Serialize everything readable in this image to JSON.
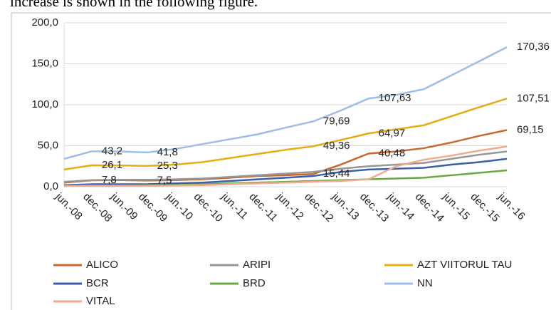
{
  "caption": "increase is shown in the following figure.",
  "chart_data": {
    "type": "line",
    "categories": [
      "jun.-08",
      "dec.-08",
      "jun.-09",
      "dec.-09",
      "jun.-10",
      "dec.-10",
      "jun.-11",
      "dec.-11",
      "jun.-12",
      "dec.-12",
      "jun.-13",
      "dec.-13",
      "jun.-14",
      "dec.-14",
      "jun.-15",
      "dec.-15",
      "jun.-16"
    ],
    "ylim": [
      0,
      200
    ],
    "yticks": [
      {
        "value": 0,
        "label": "0,0"
      },
      {
        "value": 50,
        "label": "50,0"
      },
      {
        "value": 100,
        "label": "100,0"
      },
      {
        "value": 150,
        "label": "150,0"
      },
      {
        "value": 200,
        "label": "200,0"
      }
    ],
    "grid": true,
    "legend": "bottom",
    "series": [
      {
        "name": "ALICO",
        "color": "#c8682c",
        "values": [
          5,
          7.8,
          8,
          7.5,
          8,
          9,
          11,
          13,
          14,
          15.44,
          27,
          40.48,
          43,
          47,
          54,
          62,
          69.15
        ],
        "value_labels": [
          null,
          "7,8",
          null,
          "7,5",
          null,
          null,
          null,
          null,
          null,
          "15,44",
          null,
          "40,48",
          null,
          null,
          null,
          null,
          "69,15"
        ]
      },
      {
        "name": "ARIPI",
        "color": "#969696",
        "values": [
          6,
          8,
          8.5,
          8.5,
          9,
          10,
          12,
          14,
          16,
          18,
          22,
          25,
          27,
          29,
          34,
          39,
          43
        ]
      },
      {
        "name": "AZT VIITORUL TAU",
        "color": "#e6ac10",
        "values": [
          21,
          26.1,
          26,
          25.3,
          27,
          30,
          35,
          40,
          45,
          49.36,
          57,
          64.97,
          70,
          75,
          86,
          97,
          107.51
        ],
        "value_labels": [
          null,
          "26,1",
          null,
          "25,3",
          null,
          null,
          null,
          null,
          null,
          "49,36",
          null,
          "64,97",
          null,
          null,
          null,
          null,
          "107,51"
        ]
      },
      {
        "name": "BCR",
        "color": "#3a5fa8",
        "values": [
          2,
          3,
          3,
          3,
          4,
          5,
          7,
          9,
          11,
          13,
          18,
          21,
          22,
          23,
          27,
          30,
          34
        ]
      },
      {
        "name": "BRD",
        "color": "#6aa744",
        "values": [
          1,
          1.5,
          1.5,
          2,
          2,
          3,
          4,
          5,
          6,
          7,
          8,
          9,
          10,
          11,
          14,
          17,
          20
        ]
      },
      {
        "name": "NN",
        "color": "#9dbde6",
        "values": [
          34,
          43.2,
          43,
          41.8,
          46,
          52,
          58,
          64,
          72,
          79.69,
          93,
          107.63,
          112,
          119,
          136,
          153,
          170.36
        ],
        "value_labels": [
          null,
          "43,2",
          null,
          "41,8",
          null,
          null,
          null,
          null,
          null,
          "79,69",
          null,
          "107,63",
          null,
          null,
          null,
          null,
          "170,36"
        ]
      },
      {
        "name": "VITAL",
        "color": "#f0aa90",
        "values": [
          1,
          1,
          1,
          1,
          1.5,
          2,
          3,
          4,
          5,
          6,
          7,
          9,
          25,
          33,
          38,
          44,
          49
        ]
      }
    ]
  }
}
